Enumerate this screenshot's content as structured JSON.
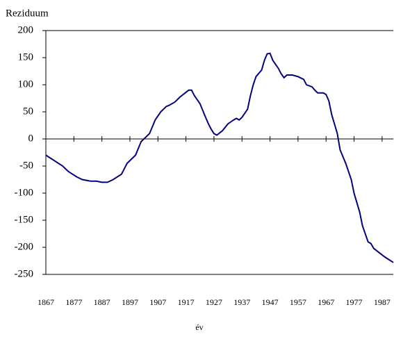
{
  "chart_data": {
    "type": "line",
    "y_label": "Reziduum",
    "x_label": "év",
    "x": [
      1867,
      1870,
      1873,
      1875,
      1878,
      1880,
      1883,
      1885,
      1887,
      1889,
      1891,
      1894,
      1896,
      1899,
      1901,
      1904,
      1906,
      1908,
      1910,
      1911,
      1913,
      1915,
      1918,
      1919,
      1920,
      1922,
      1924,
      1925,
      1926,
      1927,
      1928,
      1930,
      1932,
      1934,
      1935,
      1936,
      1937,
      1939,
      1940,
      1941,
      1942,
      1944,
      1945,
      1946,
      1947,
      1948,
      1950,
      1951,
      1952,
      1953,
      1955,
      1957,
      1959,
      1960,
      1962,
      1963,
      1964,
      1966,
      1967,
      1968,
      1969,
      1971,
      1972,
      1974,
      1976,
      1977,
      1979,
      1980,
      1982,
      1983,
      1984,
      1986,
      1988,
      1991
    ],
    "series": [
      {
        "name": "Reziduum",
        "color": "#000080",
        "values": [
          -30,
          -40,
          -50,
          -60,
          -70,
          -75,
          -78,
          -78,
          -80,
          -80,
          -75,
          -65,
          -45,
          -30,
          -5,
          10,
          35,
          50,
          60,
          62,
          68,
          78,
          90,
          90,
          80,
          65,
          40,
          28,
          18,
          10,
          7,
          15,
          28,
          35,
          38,
          35,
          40,
          55,
          80,
          100,
          115,
          127,
          145,
          157,
          158,
          145,
          130,
          120,
          113,
          118,
          118,
          115,
          110,
          100,
          96,
          90,
          85,
          85,
          82,
          70,
          45,
          10,
          -20,
          -45,
          -75,
          -100,
          -135,
          -160,
          -190,
          -193,
          -202,
          -210,
          -218,
          -228
        ]
      }
    ],
    "xlim": [
      1867,
      1991
    ],
    "xticks": [
      1867,
      1877,
      1887,
      1897,
      1907,
      1917,
      1927,
      1937,
      1947,
      1957,
      1967,
      1977,
      1987
    ],
    "ylim": [
      -250,
      200
    ],
    "yticks": [
      -250,
      -200,
      -150,
      -100,
      -50,
      0,
      50,
      100,
      150,
      200
    ]
  }
}
